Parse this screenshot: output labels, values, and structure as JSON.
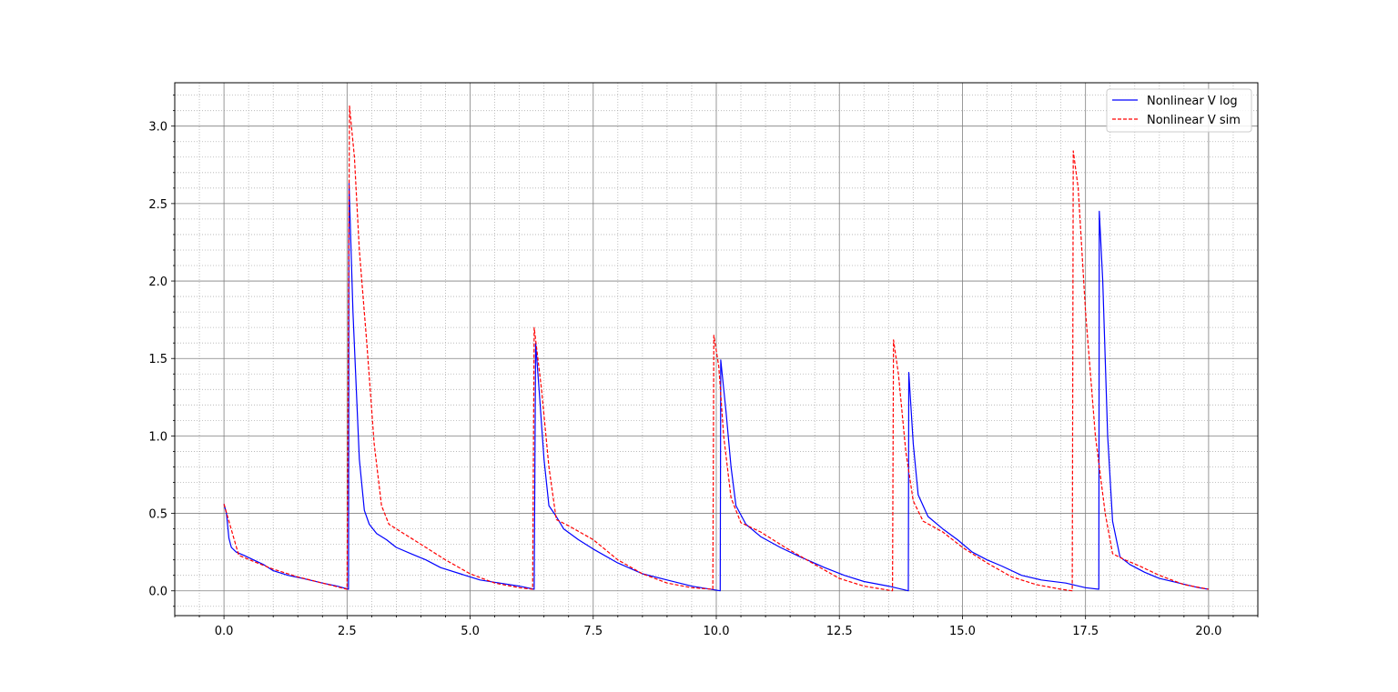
{
  "chart_data": {
    "type": "line",
    "title": "",
    "xlabel": "",
    "ylabel": "",
    "xlim": [
      -1.0,
      21.0
    ],
    "ylim": [
      -0.16,
      3.28
    ],
    "x_ticks": [
      "0.0",
      "2.5",
      "5.0",
      "7.5",
      "10.0",
      "12.5",
      "15.0",
      "17.5",
      "20.0"
    ],
    "y_ticks": [
      "0.0",
      "0.5",
      "1.0",
      "1.5",
      "2.0",
      "2.5",
      "3.0"
    ],
    "grid": "major solid, minor dotted",
    "legend_position": "top-right",
    "series": [
      {
        "name": "Nonlinear V log",
        "color": "#0000ff",
        "style": "solid",
        "points": [
          [
            0.0,
            0.56
          ],
          [
            0.05,
            0.5
          ],
          [
            0.1,
            0.34
          ],
          [
            0.15,
            0.28
          ],
          [
            0.25,
            0.25
          ],
          [
            0.4,
            0.23
          ],
          [
            0.6,
            0.2
          ],
          [
            0.8,
            0.17
          ],
          [
            1.0,
            0.13
          ],
          [
            1.3,
            0.1
          ],
          [
            1.6,
            0.08
          ],
          [
            2.0,
            0.05
          ],
          [
            2.3,
            0.03
          ],
          [
            2.53,
            0.01
          ],
          [
            2.54,
            2.63
          ],
          [
            2.62,
            1.8
          ],
          [
            2.75,
            0.85
          ],
          [
            2.85,
            0.52
          ],
          [
            2.95,
            0.43
          ],
          [
            3.1,
            0.37
          ],
          [
            3.3,
            0.33
          ],
          [
            3.5,
            0.28
          ],
          [
            3.8,
            0.24
          ],
          [
            4.1,
            0.2
          ],
          [
            4.4,
            0.15
          ],
          [
            4.8,
            0.11
          ],
          [
            5.2,
            0.07
          ],
          [
            5.6,
            0.05
          ],
          [
            6.0,
            0.03
          ],
          [
            6.3,
            0.01
          ],
          [
            6.33,
            1.6
          ],
          [
            6.4,
            1.3
          ],
          [
            6.5,
            0.85
          ],
          [
            6.6,
            0.55
          ],
          [
            6.75,
            0.48
          ],
          [
            6.9,
            0.4
          ],
          [
            7.2,
            0.33
          ],
          [
            7.5,
            0.27
          ],
          [
            8.0,
            0.18
          ],
          [
            8.5,
            0.11
          ],
          [
            9.0,
            0.07
          ],
          [
            9.5,
            0.03
          ],
          [
            10.08,
            0.0
          ],
          [
            10.09,
            1.49
          ],
          [
            10.2,
            1.15
          ],
          [
            10.3,
            0.8
          ],
          [
            10.4,
            0.55
          ],
          [
            10.6,
            0.43
          ],
          [
            10.9,
            0.35
          ],
          [
            11.3,
            0.28
          ],
          [
            11.7,
            0.22
          ],
          [
            12.2,
            0.15
          ],
          [
            12.6,
            0.1
          ],
          [
            13.0,
            0.06
          ],
          [
            13.5,
            0.03
          ],
          [
            13.9,
            0.0
          ],
          [
            13.91,
            1.41
          ],
          [
            14.0,
            0.95
          ],
          [
            14.1,
            0.62
          ],
          [
            14.3,
            0.48
          ],
          [
            14.6,
            0.4
          ],
          [
            14.9,
            0.33
          ],
          [
            15.2,
            0.25
          ],
          [
            15.5,
            0.2
          ],
          [
            15.8,
            0.16
          ],
          [
            16.2,
            0.1
          ],
          [
            16.6,
            0.07
          ],
          [
            17.1,
            0.05
          ],
          [
            17.5,
            0.02
          ],
          [
            17.77,
            0.01
          ],
          [
            17.78,
            2.45
          ],
          [
            17.85,
            2.0
          ],
          [
            17.95,
            1.0
          ],
          [
            18.05,
            0.45
          ],
          [
            18.2,
            0.22
          ],
          [
            18.4,
            0.17
          ],
          [
            18.7,
            0.12
          ],
          [
            19.0,
            0.08
          ],
          [
            19.4,
            0.05
          ],
          [
            19.8,
            0.02
          ],
          [
            20.0,
            0.01
          ]
        ]
      },
      {
        "name": "Nonlinear V sim",
        "color": "#ff0000",
        "style": "dashed",
        "points": [
          [
            0.0,
            0.56
          ],
          [
            0.1,
            0.45
          ],
          [
            0.3,
            0.23
          ],
          [
            0.6,
            0.19
          ],
          [
            1.0,
            0.14
          ],
          [
            1.5,
            0.09
          ],
          [
            2.0,
            0.05
          ],
          [
            2.5,
            0.01
          ],
          [
            2.55,
            3.13
          ],
          [
            2.65,
            2.8
          ],
          [
            2.75,
            2.2
          ],
          [
            2.9,
            1.6
          ],
          [
            3.05,
            0.95
          ],
          [
            3.2,
            0.55
          ],
          [
            3.35,
            0.43
          ],
          [
            3.6,
            0.38
          ],
          [
            4.0,
            0.3
          ],
          [
            4.5,
            0.2
          ],
          [
            5.0,
            0.11
          ],
          [
            5.5,
            0.05
          ],
          [
            6.0,
            0.02
          ],
          [
            6.27,
            0.01
          ],
          [
            6.3,
            1.7
          ],
          [
            6.45,
            1.3
          ],
          [
            6.6,
            0.8
          ],
          [
            6.75,
            0.46
          ],
          [
            7.0,
            0.42
          ],
          [
            7.5,
            0.33
          ],
          [
            8.0,
            0.2
          ],
          [
            8.5,
            0.11
          ],
          [
            9.0,
            0.05
          ],
          [
            9.5,
            0.02
          ],
          [
            9.93,
            0.01
          ],
          [
            9.95,
            1.65
          ],
          [
            10.05,
            1.45
          ],
          [
            10.15,
            1.0
          ],
          [
            10.3,
            0.6
          ],
          [
            10.5,
            0.44
          ],
          [
            10.9,
            0.38
          ],
          [
            11.4,
            0.28
          ],
          [
            12.0,
            0.17
          ],
          [
            12.5,
            0.08
          ],
          [
            13.0,
            0.03
          ],
          [
            13.58,
            0.0
          ],
          [
            13.6,
            1.62
          ],
          [
            13.7,
            1.4
          ],
          [
            13.85,
            0.9
          ],
          [
            14.0,
            0.58
          ],
          [
            14.2,
            0.45
          ],
          [
            14.6,
            0.38
          ],
          [
            15.0,
            0.28
          ],
          [
            15.5,
            0.18
          ],
          [
            16.0,
            0.09
          ],
          [
            16.5,
            0.04
          ],
          [
            17.0,
            0.01
          ],
          [
            17.23,
            0.0
          ],
          [
            17.25,
            2.84
          ],
          [
            17.35,
            2.6
          ],
          [
            17.5,
            1.8
          ],
          [
            17.7,
            1.0
          ],
          [
            17.9,
            0.5
          ],
          [
            18.05,
            0.24
          ],
          [
            18.3,
            0.2
          ],
          [
            18.6,
            0.16
          ],
          [
            19.0,
            0.1
          ],
          [
            19.5,
            0.04
          ],
          [
            20.0,
            0.01
          ]
        ]
      }
    ]
  }
}
